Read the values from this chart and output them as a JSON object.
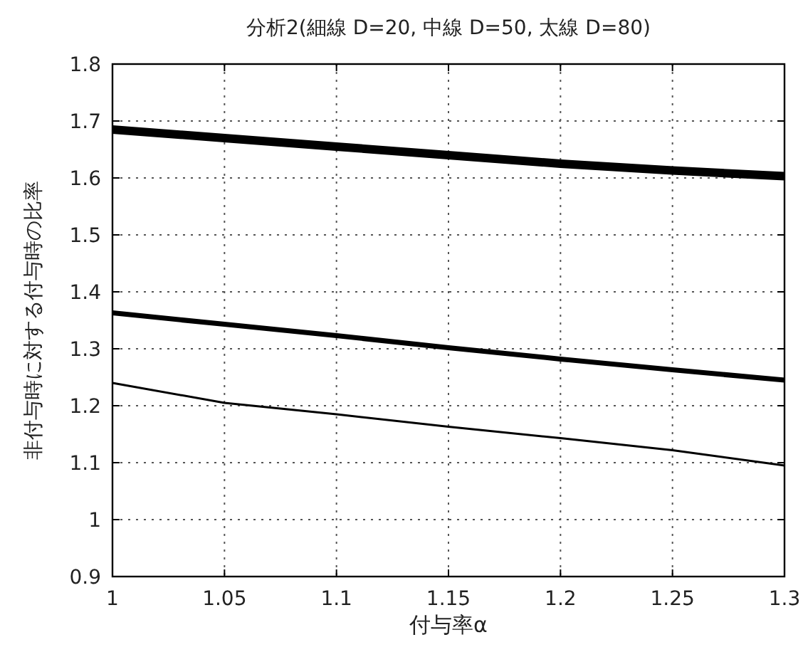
{
  "chart_data": {
    "type": "line",
    "title": "分析2(細線 D=20, 中線 D=50, 太線 D=80)",
    "xlabel": "付与率α",
    "ylabel": "非付与時に対する付与時の比率",
    "x": [
      1,
      1.05,
      1.1,
      1.15,
      1.2,
      1.25,
      1.3
    ],
    "series": [
      {
        "color": "#000000",
        "values": [
          1.24,
          1.205,
          1.185,
          1.163,
          1.143,
          1.122,
          1.095
        ]
      },
      {
        "color": "#000000",
        "values": [
          1.363,
          1.343,
          1.323,
          1.302,
          1.282,
          1.263,
          1.245
        ]
      },
      {
        "color": "#000000",
        "values": [
          1.685,
          1.67,
          1.655,
          1.64,
          1.625,
          1.613,
          1.603
        ]
      }
    ],
    "xlim": [
      1,
      1.3
    ],
    "xticks": [
      1,
      1.05,
      1.1,
      1.15,
      1.2,
      1.25,
      1.3
    ],
    "ylim": [
      0.9,
      1.8
    ],
    "yticks": [
      0.9,
      1,
      1.1,
      1.2,
      1.3,
      1.4,
      1.5,
      1.6,
      1.7,
      1.8
    ],
    "grid": true,
    "line_style": "solid"
  }
}
